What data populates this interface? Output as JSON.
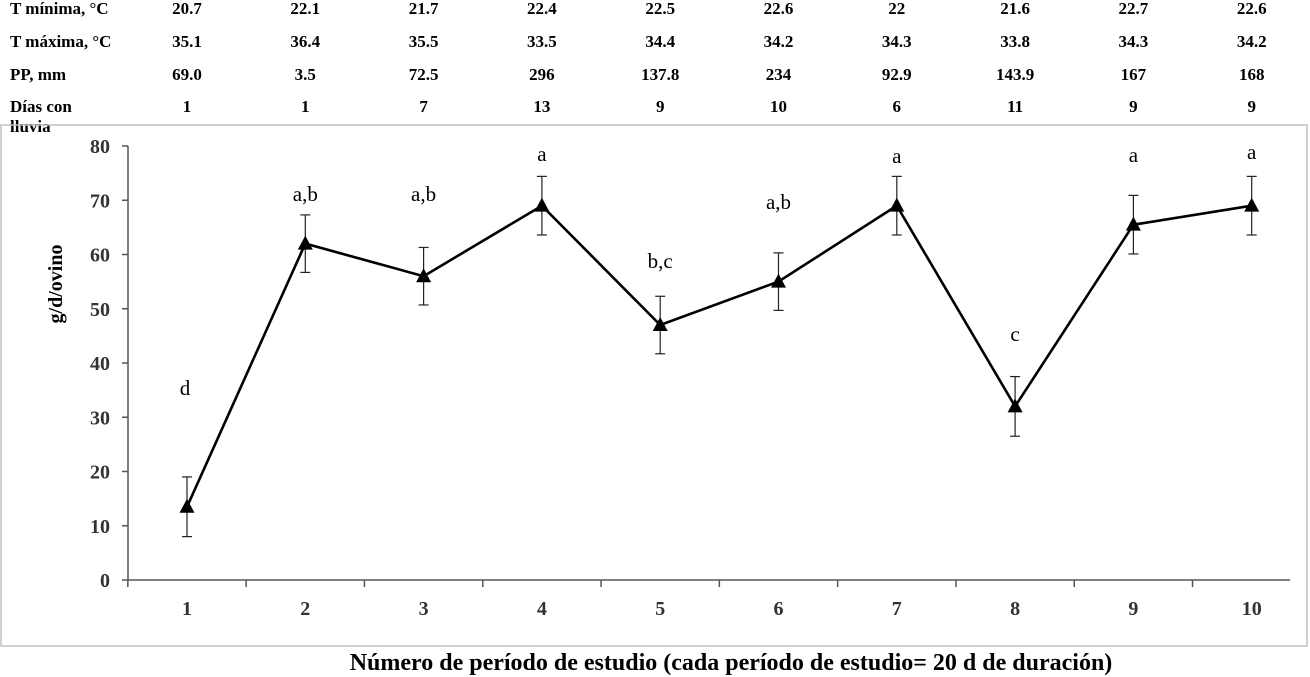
{
  "chart_data": {
    "type": "line",
    "title": "",
    "xlabel": "Número de período de estudio (cada período de estudio= 20 d de duración)",
    "ylabel": "g/d/ovino",
    "ylim": [
      0,
      80
    ],
    "yticks": [
      0,
      10,
      20,
      30,
      40,
      50,
      60,
      70,
      80
    ],
    "grid": false,
    "categories": [
      "1",
      "2",
      "3",
      "4",
      "5",
      "6",
      "7",
      "8",
      "9",
      "10"
    ],
    "series": [
      {
        "values": [
          13.5,
          62,
          56,
          69,
          47,
          55,
          69,
          32,
          65.5,
          69
        ],
        "error": [
          5.5,
          5.3,
          5.3,
          5.4,
          5.3,
          5.3,
          5.4,
          5.5,
          5.4,
          5.4
        ],
        "significance": [
          "d",
          "a,b",
          "a,b",
          "a",
          "b,c",
          "a,b",
          "a",
          "c",
          "a",
          "a"
        ],
        "marker": "triangle",
        "color": "#000000"
      }
    ],
    "table": [
      {
        "label": "T mínima, °C",
        "values": [
          "20.7",
          "22.1",
          "21.7",
          "22.4",
          "22.5",
          "22.6",
          "22",
          "21.6",
          "22.7",
          "22.6"
        ]
      },
      {
        "label": "T máxima, °C",
        "values": [
          "35.1",
          "36.4",
          "35.5",
          "33.5",
          "34.4",
          "34.2",
          "34.3",
          "33.8",
          "34.3",
          "34.2"
        ]
      },
      {
        "label": "PP, mm",
        "values": [
          "69.0",
          "3.5",
          "72.5",
          "296",
          "137.8",
          "234",
          "92.9",
          "143.9",
          "167",
          "168"
        ]
      },
      {
        "label": "Días con lluvia",
        "values": [
          "1",
          "1",
          "7",
          "13",
          "9",
          "10",
          "6",
          "11",
          "9",
          "9"
        ]
      }
    ]
  }
}
